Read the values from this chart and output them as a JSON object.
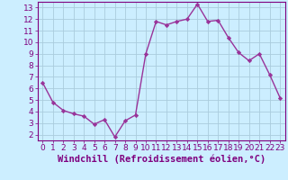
{
  "x": [
    0,
    1,
    2,
    3,
    4,
    5,
    6,
    7,
    8,
    9,
    10,
    11,
    12,
    13,
    14,
    15,
    16,
    17,
    18,
    19,
    20,
    21,
    22,
    23
  ],
  "y": [
    6.5,
    4.8,
    4.1,
    3.8,
    3.6,
    2.9,
    3.3,
    1.8,
    3.2,
    3.7,
    9.0,
    11.8,
    11.5,
    11.8,
    12.0,
    13.3,
    11.8,
    11.9,
    10.4,
    9.1,
    8.4,
    9.0,
    7.2,
    5.2
  ],
  "line_color": "#993399",
  "marker": "D",
  "marker_size": 2.2,
  "line_width": 1.0,
  "xlabel": "Windchill (Refroidissement éolien,°C)",
  "xlabel_fontsize": 7.5,
  "xlim": [
    -0.5,
    23.5
  ],
  "ylim": [
    1.5,
    13.5
  ],
  "yticks": [
    2,
    3,
    4,
    5,
    6,
    7,
    8,
    9,
    10,
    11,
    12,
    13
  ],
  "xticks": [
    0,
    1,
    2,
    3,
    4,
    5,
    6,
    7,
    8,
    9,
    10,
    11,
    12,
    13,
    14,
    15,
    16,
    17,
    18,
    19,
    20,
    21,
    22,
    23
  ],
  "tick_fontsize": 6.5,
  "bg_color": "#cceeff",
  "grid_color": "#aaccdd",
  "axes_color": "#7f007f",
  "spine_color": "#7f007f"
}
